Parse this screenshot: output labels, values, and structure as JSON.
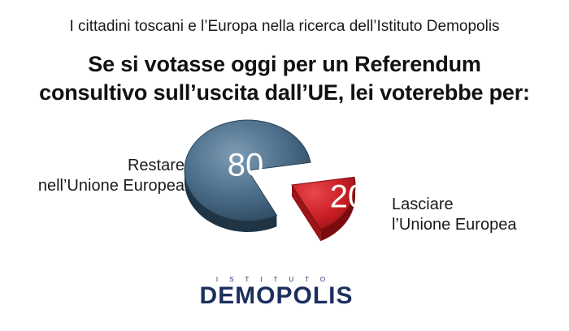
{
  "header": {
    "subtitle": "I cittadini toscani e l’Europa nella ricerca dell’Istituto Demopolis",
    "title_line1": "Se si votasse oggi per un Referendum",
    "title_line2": "consultivo sull’uscita dall’UE, lei voterebbe per:"
  },
  "chart_data": {
    "type": "pie",
    "title": "Se si votasse oggi per un Referendum consultivo sull’uscita dall’UE, lei voterebbe per:",
    "slices": [
      {
        "label_line1": "Restare",
        "label_line2": "nell’Unione Europea",
        "value": 80,
        "value_label": "80",
        "color": "#3f627d"
      },
      {
        "label_line1": "Lasciare",
        "label_line2": "l’Unione Europea",
        "value": 20,
        "value_label": "20",
        "color": "#c81e24"
      }
    ],
    "exploded_slice": "Lasciare l’Unione Europea",
    "style": "3d"
  },
  "logo": {
    "small_text": "ISTITUTO",
    "big_text": "DEMOPOLIS",
    "color": "#1c2f5e"
  }
}
